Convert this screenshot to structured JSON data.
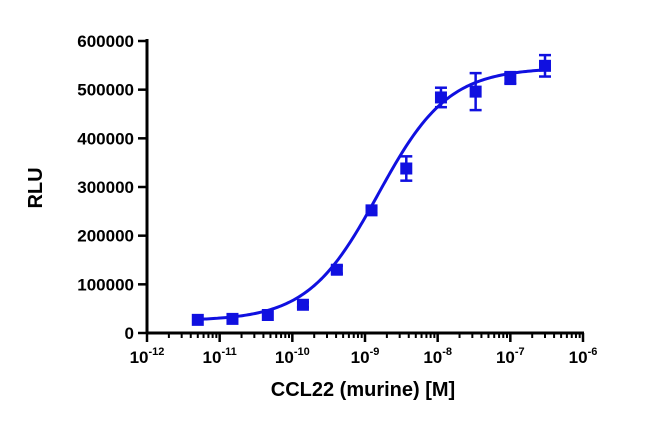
{
  "chart_data": {
    "type": "scatter",
    "xlabel": "CCL22  (murine) [M]",
    "ylabel": "RLU",
    "x_scale": "log",
    "xlim": [
      1e-12,
      1e-06
    ],
    "ylim": [
      0,
      600000
    ],
    "x_ticks": [
      {
        "base": "10",
        "exp": "-12"
      },
      {
        "base": "10",
        "exp": "-11"
      },
      {
        "base": "10",
        "exp": "-10"
      },
      {
        "base": "10",
        "exp": "-9"
      },
      {
        "base": "10",
        "exp": "-8"
      },
      {
        "base": "10",
        "exp": "-7"
      },
      {
        "base": "10",
        "exp": "-6"
      }
    ],
    "y_ticks": [
      "0",
      "100000",
      "200000",
      "300000",
      "400000",
      "500000",
      "600000"
    ],
    "grid": false,
    "color": "#1010e0",
    "series": [
      {
        "x": [
          5e-12,
          1.5e-11,
          4.6e-11,
          1.4e-10,
          4.1e-10,
          1.23e-09,
          3.7e-09,
          1.11e-08,
          3.33e-08,
          1e-07,
          3e-07
        ],
        "y": [
          27000,
          29000,
          37000,
          58000,
          130000,
          252000,
          338000,
          484000,
          496000,
          524000,
          549000
        ],
        "err": [
          3000,
          3000,
          3000,
          5000,
          8000,
          6000,
          25000,
          20000,
          38000,
          12000,
          22000
        ]
      }
    ],
    "fit": {
      "bottom": 25000,
      "top": 545000,
      "logEC50": -8.82,
      "hill": 0.9
    }
  }
}
